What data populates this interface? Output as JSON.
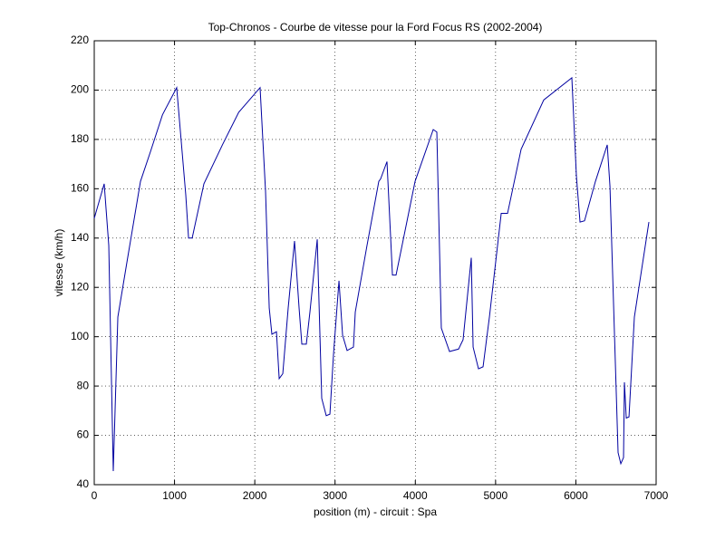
{
  "chart_data": {
    "type": "line",
    "title": "Top-Chronos - Courbe de vitesse pour la Ford Focus RS (2002-2004)",
    "x_label": "position (m) - circuit : Spa",
    "y_label": "vitesse (km/h)",
    "x": [
      0,
      124,
      181,
      237,
      294,
      406,
      576,
      700,
      850,
      1027,
      1140,
      1175,
      1220,
      1366,
      1600,
      1800,
      2066,
      2134,
      2180,
      2213,
      2270,
      2304,
      2349,
      2416,
      2495,
      2552,
      2586,
      2642,
      2687,
      2778,
      2834,
      2890,
      2936,
      2981,
      3049,
      3094,
      3150,
      3229,
      3252,
      3398,
      3545,
      3568,
      3647,
      3715,
      3760,
      3997,
      4223,
      4268,
      4324,
      4426,
      4539,
      4595,
      4697,
      4720,
      4787,
      4844,
      4923,
      5070,
      5149,
      5318,
      5600,
      5950,
      6007,
      6052,
      6108,
      6244,
      6391,
      6425,
      6526,
      6560,
      6594,
      6605,
      6628,
      6662,
      6729,
      6910
    ],
    "values": [
      148,
      162,
      137,
      45.5,
      108,
      130,
      163,
      175,
      190,
      201,
      157.6,
      140,
      140,
      162,
      178,
      191,
      201,
      159,
      111.6,
      101,
      102,
      83,
      85,
      111.6,
      138.8,
      111.6,
      97,
      97,
      110,
      139.5,
      75,
      68,
      68.6,
      93,
      122.7,
      100.6,
      94.4,
      95.8,
      110,
      137,
      163,
      164,
      171,
      125,
      125,
      163,
      184,
      183,
      103.5,
      94,
      95,
      98.8,
      132,
      95.8,
      87,
      87.8,
      108,
      150,
      150,
      176,
      196,
      205,
      165,
      146.5,
      147,
      163,
      177.8,
      161,
      53,
      48.5,
      51,
      81.5,
      67,
      67.5,
      108,
      146.5
    ],
    "color": "#0000a0",
    "xlim": [
      0,
      7000
    ],
    "xticks": [
      0,
      1000,
      2000,
      3000,
      4000,
      5000,
      6000,
      7000
    ],
    "ylim": [
      40,
      220
    ],
    "yticks": [
      40,
      60,
      80,
      100,
      120,
      140,
      160,
      180,
      200,
      220
    ],
    "grid": true
  }
}
